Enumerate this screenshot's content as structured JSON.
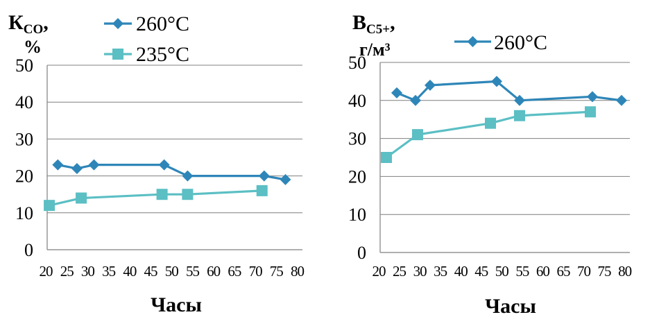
{
  "colors": {
    "s260": "#2E86B8",
    "s235": "#5BBFC4",
    "grid": "#7f7f7f"
  },
  "chart_data": [
    {
      "type": "line",
      "ylabel_main": "К",
      "ylabel_sub": "CO",
      "ylabel_suffix": ",",
      "ylabel_unit": "%",
      "xlabel": "Часы",
      "x_ticks": [
        "20",
        "25",
        "30",
        "35",
        "40",
        "45",
        "50",
        "55",
        "60",
        "65",
        "70",
        "75",
        "80"
      ],
      "y_ticks": [
        "0",
        "10",
        "20",
        "30",
        "40",
        "50"
      ],
      "xlim": [
        20,
        80
      ],
      "ylim": [
        0,
        50
      ],
      "legend": {
        "placement": "top",
        "entries": [
          "260°C",
          "235°C"
        ]
      },
      "series": [
        {
          "name": "260°C",
          "marker": "diamond",
          "color_key": "s260",
          "points": [
            [
              22.5,
              23
            ],
            [
              27,
              22
            ],
            [
              31,
              23
            ],
            [
              47.5,
              23
            ],
            [
              53,
              20
            ],
            [
              71,
              20
            ],
            [
              76,
              19
            ]
          ]
        },
        {
          "name": "235°C",
          "marker": "square",
          "color_key": "s235",
          "points": [
            [
              20.5,
              12
            ],
            [
              28,
              14
            ],
            [
              47,
              15
            ],
            [
              53,
              15
            ],
            [
              70.5,
              16
            ]
          ]
        }
      ]
    },
    {
      "type": "line",
      "ylabel_main": "B",
      "ylabel_sub": "C5+",
      "ylabel_suffix": ",",
      "ylabel_unit": "г/м³",
      "xlabel": "Часы",
      "x_ticks": [
        "20",
        "25",
        "30",
        "35",
        "40",
        "45",
        "50",
        "55",
        "60",
        "65",
        "70",
        "75",
        "80"
      ],
      "y_ticks": [
        "0",
        "10",
        "20",
        "30",
        "40",
        "50"
      ],
      "xlim": [
        20,
        80
      ],
      "ylim": [
        0,
        50
      ],
      "legend": {
        "placement": "top",
        "entries": [
          "260°C"
        ]
      },
      "series": [
        {
          "name": "260°C",
          "marker": "diamond",
          "color_key": "s260",
          "points": [
            [
              24,
              42
            ],
            [
              28.5,
              40
            ],
            [
              32,
              44
            ],
            [
              48,
              45
            ],
            [
              53.5,
              40
            ],
            [
              71,
              41
            ],
            [
              78,
              40
            ]
          ]
        },
        {
          "name": "",
          "marker": "square",
          "color_key": "s235",
          "points": [
            [
              21.5,
              25
            ],
            [
              29,
              31
            ],
            [
              46.5,
              34
            ],
            [
              53.5,
              36
            ],
            [
              70.5,
              37
            ]
          ]
        }
      ]
    }
  ]
}
